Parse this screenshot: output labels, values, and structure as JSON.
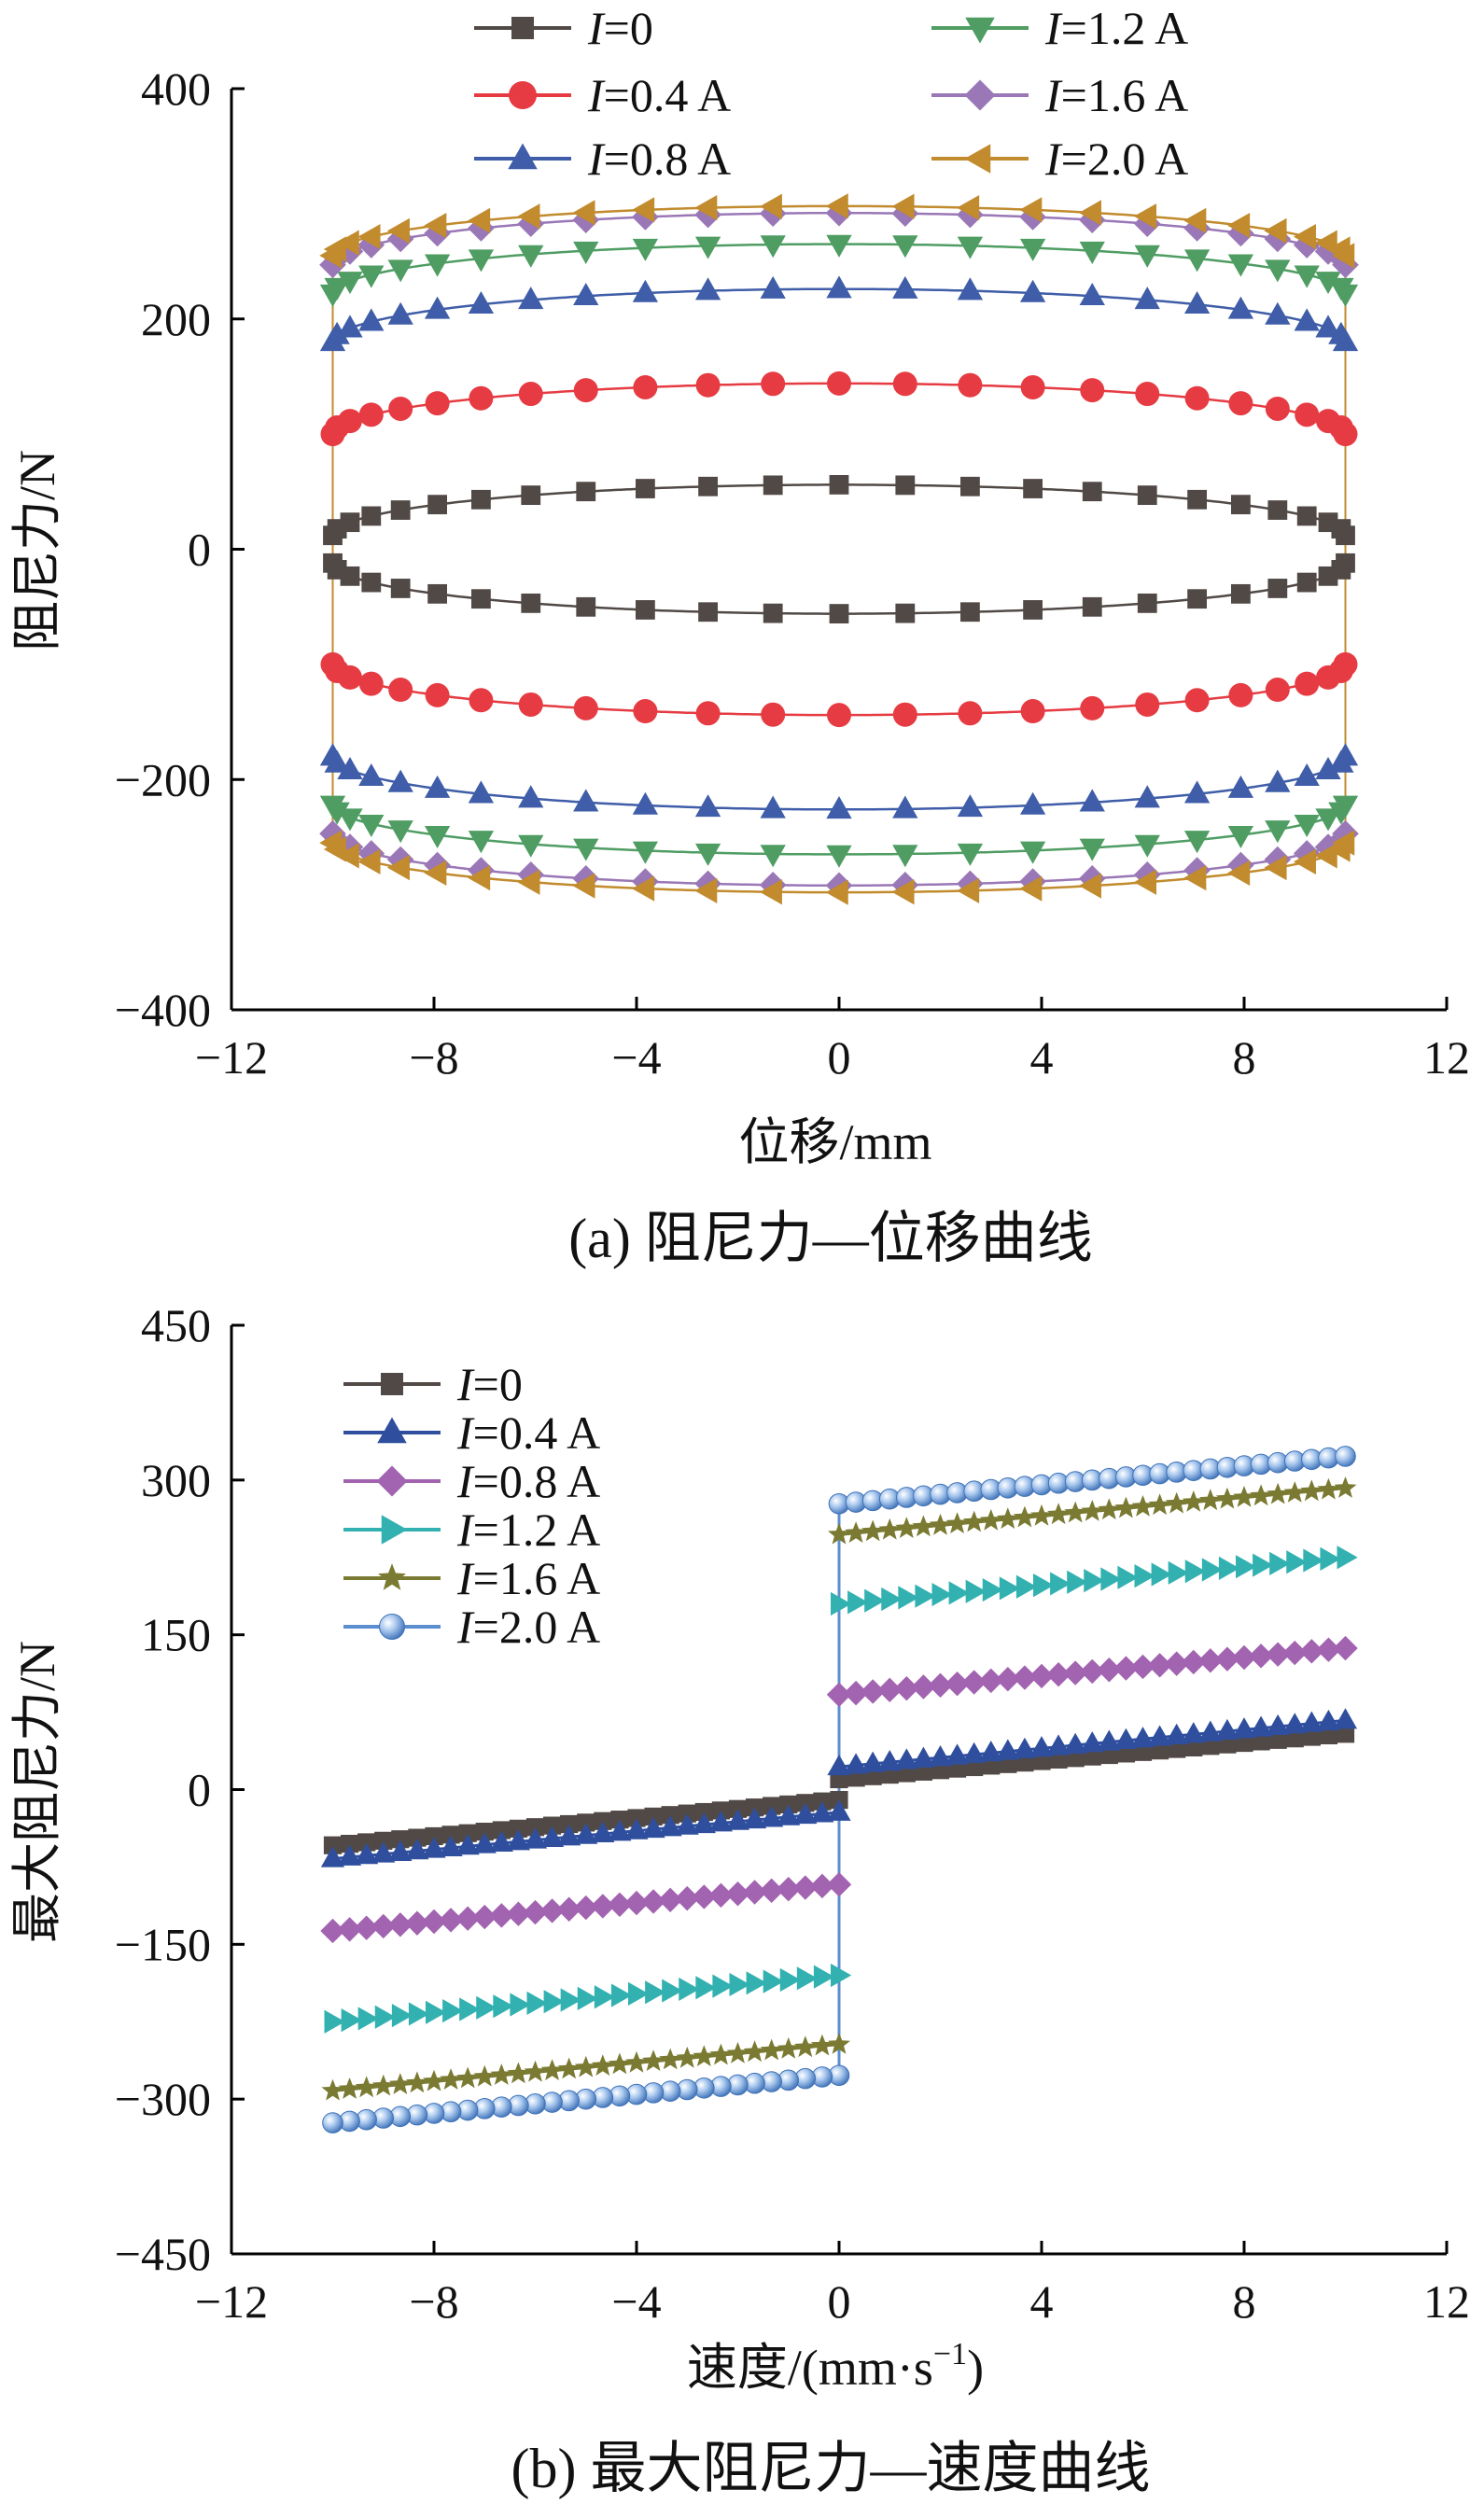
{
  "chart_data": [
    {
      "type": "line",
      "caption": "(a)  阻尼力—位移曲线",
      "xlabel": "位移/mm",
      "ylabel": "阻尼力/N",
      "xlim": [
        -12,
        12
      ],
      "ylim": [
        -400,
        400
      ],
      "xticks": [
        "−12",
        "−8",
        "−4",
        "0",
        "4",
        "8",
        "12"
      ],
      "yticks": [
        "400",
        "200",
        "0",
        "−200",
        "−400"
      ],
      "grid": false,
      "legend_position": "top, two columns",
      "series": [
        {
          "name": "I=0",
          "label_var": "I",
          "label_rest": "=0",
          "color": "#514946",
          "marker": "square",
          "peak_force": 56,
          "edge_force": 12
        },
        {
          "name": "I=0.4 A",
          "label_var": "I",
          "label_rest": "=0.4 A",
          "color": "#e63b42",
          "marker": "circle",
          "peak_force": 144,
          "edge_force": 100
        },
        {
          "name": "I=0.8 A",
          "label_var": "I",
          "label_rest": "=0.8 A",
          "color": "#3f5da8",
          "marker": "triangle-up",
          "peak_force": 226,
          "edge_force": 180
        },
        {
          "name": "I=1.2 A",
          "label_var": "I",
          "label_rest": "=1.2 A",
          "color": "#4f9d63",
          "marker": "triangle-down",
          "peak_force": 265,
          "edge_force": 222
        },
        {
          "name": "I=1.6 A",
          "label_var": "I",
          "label_rest": "=1.6 A",
          "color": "#9a77b6",
          "marker": "diamond",
          "peak_force": 292,
          "edge_force": 247
        },
        {
          "name": "I=2.0 A",
          "label_var": "I",
          "label_rest": "=2.0 A",
          "color": "#c18b2e",
          "marker": "triangle-left",
          "peak_force": 298,
          "edge_force": 255
        }
      ],
      "displacement_amplitude": 10
    },
    {
      "type": "line",
      "caption": "(b)  最大阻尼力—速度曲线",
      "xlabel_main": "速度/(mm·s",
      "xlabel_sup": "−1",
      "xlabel_close": ")",
      "ylabel": "最大阻尼力/N",
      "xlim": [
        -12,
        12
      ],
      "ylim": [
        -450,
        450
      ],
      "xticks": [
        "−12",
        "−8",
        "−4",
        "0",
        "4",
        "8",
        "12"
      ],
      "yticks": [
        "450",
        "300",
        "150",
        "0",
        "−150",
        "−300",
        "−450"
      ],
      "grid": false,
      "legend_position": "top-left",
      "series": [
        {
          "name": "I=0",
          "label_var": "I",
          "label_rest": "=0",
          "color": "#514946",
          "marker": "square",
          "force_at_0": 10,
          "force_at_10": 54
        },
        {
          "name": "I=0.4 A",
          "label_var": "I",
          "label_rest": "=0.4 A",
          "color": "#2f4f9e",
          "marker": "triangle-up",
          "force_at_0": 22,
          "force_at_10": 67
        },
        {
          "name": "I=0.8 A",
          "label_var": "I",
          "label_rest": "=0.8 A",
          "color": "#a263b0",
          "marker": "diamond",
          "force_at_0": 92,
          "force_at_10": 137
        },
        {
          "name": "I=1.2 A",
          "label_var": "I",
          "label_rest": "=1.2 A",
          "color": "#33b1b1",
          "marker": "triangle-right",
          "force_at_0": 180,
          "force_at_10": 225
        },
        {
          "name": "I=1.6 A",
          "label_var": "I",
          "label_rest": "=1.6 A",
          "color": "#7a7a32",
          "marker": "star",
          "force_at_0": 247,
          "force_at_10": 292
        },
        {
          "name": "I=2.0 A",
          "label_var": "I",
          "label_rest": "=2.0 A",
          "color": "#5b8ed0",
          "marker": "sphere",
          "force_at_0": 277,
          "force_at_10": 323
        }
      ],
      "velocity_range": [
        -10,
        10
      ]
    }
  ]
}
